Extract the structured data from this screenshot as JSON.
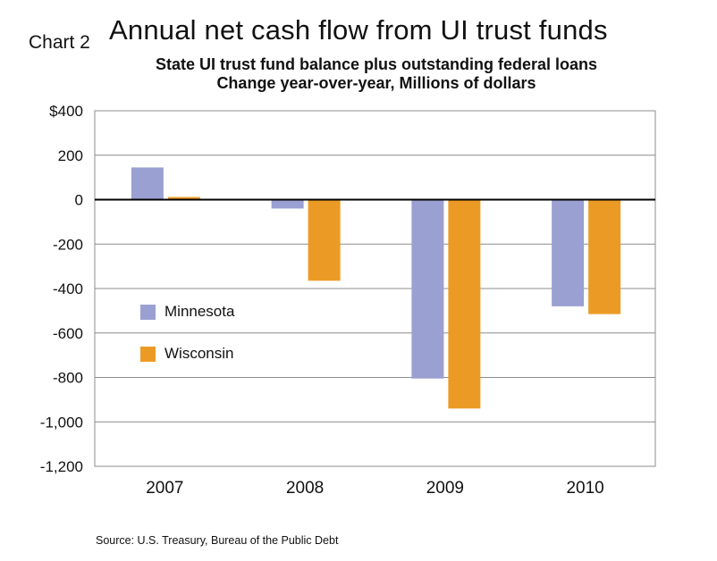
{
  "header": {
    "chart_number": "Chart 2",
    "title": "Annual net cash flow from UI trust funds",
    "subtitle_line1": "State UI trust fund balance plus outstanding federal loans",
    "subtitle_line2": "Change year-over-year, Millions of dollars"
  },
  "footer": {
    "source": "Source: U.S. Treasury, Bureau of the Public Debt"
  },
  "chart_data": {
    "type": "bar",
    "categories": [
      "2007",
      "2008",
      "2009",
      "2010"
    ],
    "series": [
      {
        "name": "Minnesota",
        "values": [
          145,
          -40,
          -805,
          -480
        ],
        "color": "#9aa0d2"
      },
      {
        "name": "Wisconsin",
        "values": [
          12,
          -365,
          -940,
          -515
        ],
        "color": "#eb9b25"
      }
    ],
    "ylim": [
      -1200,
      400
    ],
    "yticks": [
      400,
      200,
      0,
      -200,
      -400,
      -600,
      -800,
      -1000,
      -1200
    ],
    "ytick_labels": [
      "$400",
      "200",
      "0",
      "-200",
      "-400",
      "-600",
      "-800",
      "-1,000",
      "-1,200"
    ],
    "grid": true,
    "legend": "inside-left"
  }
}
